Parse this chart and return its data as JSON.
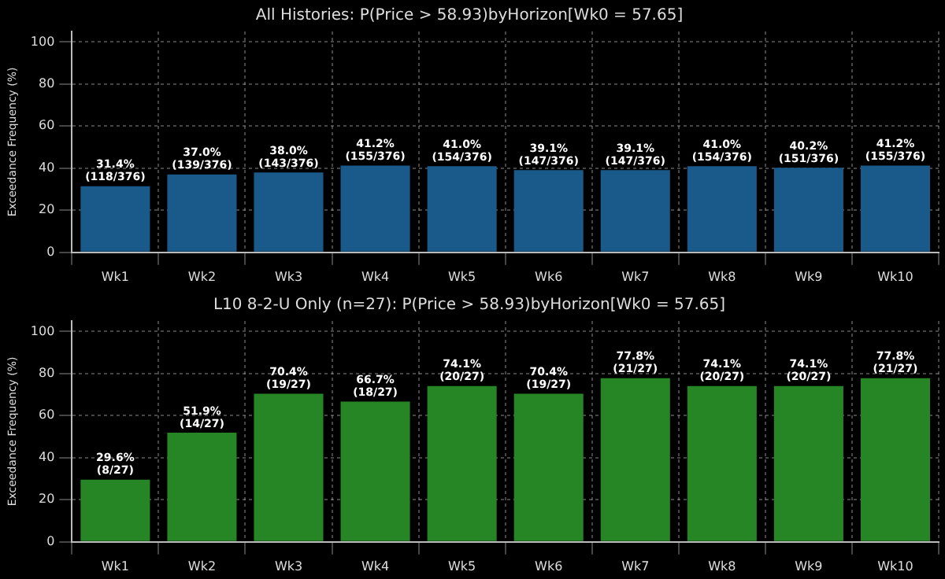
{
  "chart_data": [
    {
      "type": "bar",
      "title": "All Histories: P(Price > 58.93)byHorizon[Wk0 = 57.65]",
      "ylabel": "Exceedance Frequency (%)",
      "categories": [
        "Wk1",
        "Wk2",
        "Wk3",
        "Wk4",
        "Wk5",
        "Wk6",
        "Wk7",
        "Wk8",
        "Wk9",
        "Wk10"
      ],
      "values": [
        31.4,
        37.0,
        38.0,
        41.2,
        41.0,
        39.1,
        39.1,
        41.0,
        40.2,
        41.2
      ],
      "color": "#1a5a8a",
      "value_labels": [
        "31.4%\n(118/376)",
        "37.0%\n(139/376)",
        "38.0%\n(143/376)",
        "41.2%\n(155/376)",
        "41.0%\n(154/376)",
        "39.1%\n(147/376)",
        "39.1%\n(147/376)",
        "41.0%\n(154/376)",
        "40.2%\n(151/376)",
        "41.2%\n(155/376)"
      ],
      "ylim": [
        0,
        105
      ],
      "yticks": [
        0,
        20,
        40,
        60,
        80,
        100
      ],
      "grid": true
    },
    {
      "type": "bar",
      "title": "L10 8-2-U Only (n=27): P(Price > 58.93)byHorizon[Wk0 = 57.65]",
      "ylabel": "Exceedance Frequency (%)",
      "categories": [
        "Wk1",
        "Wk2",
        "Wk3",
        "Wk4",
        "Wk5",
        "Wk6",
        "Wk7",
        "Wk8",
        "Wk9",
        "Wk10"
      ],
      "values": [
        29.6,
        51.9,
        70.4,
        66.7,
        74.1,
        70.4,
        77.8,
        74.1,
        74.1,
        77.8
      ],
      "color": "#268626",
      "value_labels": [
        "29.6%\n(8/27)",
        "51.9%\n(14/27)",
        "70.4%\n(19/27)",
        "66.7%\n(18/27)",
        "74.1%\n(20/27)",
        "70.4%\n(19/27)",
        "77.8%\n(21/27)",
        "74.1%\n(20/27)",
        "74.1%\n(20/27)",
        "77.8%\n(21/27)"
      ],
      "ylim": [
        0,
        105
      ],
      "yticks": [
        0,
        20,
        40,
        60,
        80,
        100
      ],
      "grid": true
    }
  ]
}
